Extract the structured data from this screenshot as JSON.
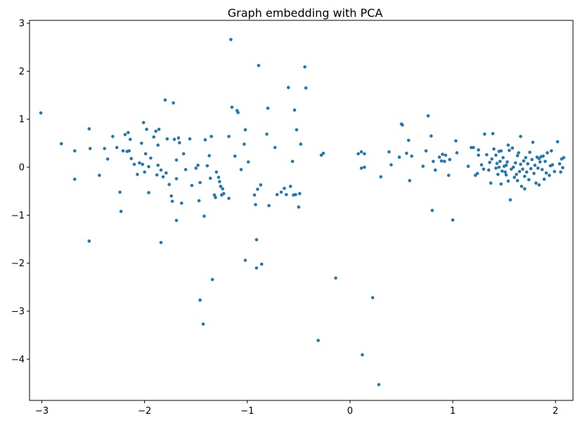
{
  "chart_data": {
    "type": "scatter",
    "title": "Graph embedding with PCA",
    "xlabel": "",
    "ylabel": "",
    "xlim": [
      -3.12,
      2.17
    ],
    "ylim": [
      -4.86,
      3.06
    ],
    "xticks": [
      -3,
      -2,
      -1,
      0,
      1,
      2
    ],
    "yticks": [
      -4,
      -3,
      -2,
      -1,
      0,
      1,
      2,
      3
    ],
    "xtick_labels": [
      "−3",
      "−2",
      "−1",
      "0",
      "1",
      "2"
    ],
    "ytick_labels": [
      "−4",
      "−3",
      "−2",
      "−1",
      "0",
      "1",
      "2",
      "3"
    ],
    "grid": false,
    "marker_color": "#1f77b4",
    "points": [
      [
        -3.01,
        1.13
      ],
      [
        -2.81,
        0.49
      ],
      [
        -2.68,
        0.34
      ],
      [
        -2.68,
        -0.25
      ],
      [
        -2.54,
        0.8
      ],
      [
        -2.53,
        0.39
      ],
      [
        -2.54,
        -1.54
      ],
      [
        -2.44,
        -0.17
      ],
      [
        -2.39,
        0.39
      ],
      [
        -2.36,
        0.17
      ],
      [
        -2.31,
        0.64
      ],
      [
        -2.27,
        0.41
      ],
      [
        -2.24,
        -0.52
      ],
      [
        -2.23,
        -0.92
      ],
      [
        -2.21,
        0.34
      ],
      [
        -2.19,
        0.68
      ],
      [
        -2.17,
        0.33
      ],
      [
        -2.16,
        0.72
      ],
      [
        -2.15,
        0.34
      ],
      [
        -2.14,
        0.58
      ],
      [
        -2.13,
        0.18
      ],
      [
        -2.1,
        0.06
      ],
      [
        -2.07,
        -0.15
      ],
      [
        -2.05,
        0.09
      ],
      [
        -2.03,
        0.5
      ],
      [
        -2.02,
        0.06
      ],
      [
        -2.01,
        0.93
      ],
      [
        -2.0,
        -0.1
      ],
      [
        -1.99,
        0.28
      ],
      [
        -1.98,
        0.79
      ],
      [
        -1.96,
        0.01
      ],
      [
        -1.96,
        -0.53
      ],
      [
        -1.94,
        0.19
      ],
      [
        -1.91,
        0.63
      ],
      [
        -1.89,
        0.75
      ],
      [
        -1.88,
        -0.16
      ],
      [
        -1.87,
        0.46
      ],
      [
        -1.87,
        0.04
      ],
      [
        -1.86,
        0.79
      ],
      [
        -1.84,
        -0.06
      ],
      [
        -1.84,
        -1.57
      ],
      [
        -1.82,
        -0.2
      ],
      [
        -1.8,
        1.4
      ],
      [
        -1.79,
        -0.12
      ],
      [
        -1.78,
        0.59
      ],
      [
        -1.76,
        -0.36
      ],
      [
        -1.74,
        -0.6
      ],
      [
        -1.73,
        -0.71
      ],
      [
        -1.72,
        1.34
      ],
      [
        -1.71,
        0.58
      ],
      [
        -1.69,
        -0.24
      ],
      [
        -1.69,
        -1.11
      ],
      [
        -1.69,
        0.15
      ],
      [
        -1.67,
        0.61
      ],
      [
        -1.66,
        0.51
      ],
      [
        -1.64,
        -0.75
      ],
      [
        -1.62,
        0.28
      ],
      [
        -1.6,
        -0.05
      ],
      [
        -1.56,
        0.59
      ],
      [
        -1.54,
        -0.38
      ],
      [
        -1.5,
        -0.02
      ],
      [
        -1.48,
        0.04
      ],
      [
        -1.47,
        -0.7
      ],
      [
        -1.46,
        -0.32
      ],
      [
        -1.46,
        -2.77
      ],
      [
        -1.43,
        -3.27
      ],
      [
        -1.42,
        -1.02
      ],
      [
        -1.41,
        0.57
      ],
      [
        -1.39,
        0.03
      ],
      [
        -1.37,
        0.24
      ],
      [
        -1.36,
        -0.23
      ],
      [
        -1.35,
        0.64
      ],
      [
        -1.34,
        -2.34
      ],
      [
        -1.32,
        -0.58
      ],
      [
        -1.31,
        -0.63
      ],
      [
        -1.3,
        -0.1
      ],
      [
        -1.28,
        -0.21
      ],
      [
        -1.27,
        -0.3
      ],
      [
        -1.26,
        -0.4
      ],
      [
        -1.25,
        -0.58
      ],
      [
        -1.24,
        -0.45
      ],
      [
        -1.23,
        -0.55
      ],
      [
        -1.18,
        -0.65
      ],
      [
        -1.18,
        0.64
      ],
      [
        -1.16,
        2.66
      ],
      [
        -1.15,
        1.25
      ],
      [
        -1.12,
        0.23
      ],
      [
        -1.1,
        1.18
      ],
      [
        -1.09,
        1.14
      ],
      [
        -1.06,
        -0.05
      ],
      [
        -1.03,
        0.48
      ],
      [
        -1.02,
        0.78
      ],
      [
        -1.02,
        -1.94
      ],
      [
        -0.99,
        0.11
      ],
      [
        -0.93,
        -0.58
      ],
      [
        -0.92,
        -0.78
      ],
      [
        -0.91,
        -1.51
      ],
      [
        -0.91,
        -2.1
      ],
      [
        -0.9,
        -0.46
      ],
      [
        -0.89,
        2.12
      ],
      [
        -0.87,
        -0.37
      ],
      [
        -0.86,
        -2.02
      ],
      [
        -0.81,
        0.69
      ],
      [
        -0.8,
        1.23
      ],
      [
        -0.79,
        -0.8
      ],
      [
        -0.73,
        0.41
      ],
      [
        -0.71,
        -0.57
      ],
      [
        -0.67,
        -0.52
      ],
      [
        -0.64,
        -0.44
      ],
      [
        -0.62,
        -0.57
      ],
      [
        -0.6,
        1.66
      ],
      [
        -0.58,
        -0.4
      ],
      [
        -0.56,
        0.12
      ],
      [
        -0.55,
        -0.58
      ],
      [
        -0.54,
        1.19
      ],
      [
        -0.53,
        -0.57
      ],
      [
        -0.52,
        0.78
      ],
      [
        -0.5,
        -0.83
      ],
      [
        -0.49,
        -0.55
      ],
      [
        -0.48,
        0.48
      ],
      [
        -0.44,
        2.09
      ],
      [
        -0.43,
        1.65
      ],
      [
        -0.31,
        -3.61
      ],
      [
        -0.28,
        0.25
      ],
      [
        -0.26,
        0.29
      ],
      [
        -0.14,
        -2.31
      ],
      [
        0.08,
        0.28
      ],
      [
        0.11,
        0.32
      ],
      [
        0.11,
        -0.02
      ],
      [
        0.12,
        -3.91
      ],
      [
        0.14,
        0.28
      ],
      [
        0.14,
        0.0
      ],
      [
        0.22,
        -2.72
      ],
      [
        0.28,
        -4.53
      ],
      [
        0.3,
        -0.2
      ],
      [
        0.38,
        0.32
      ],
      [
        0.4,
        0.05
      ],
      [
        0.48,
        0.21
      ],
      [
        0.5,
        0.9
      ],
      [
        0.51,
        0.88
      ],
      [
        0.55,
        0.29
      ],
      [
        0.57,
        0.56
      ],
      [
        0.58,
        -0.28
      ],
      [
        0.6,
        0.23
      ],
      [
        0.71,
        0.02
      ],
      [
        0.74,
        0.34
      ],
      [
        0.76,
        1.07
      ],
      [
        0.79,
        0.65
      ],
      [
        0.8,
        -0.9
      ],
      [
        0.81,
        0.12
      ],
      [
        0.83,
        -0.06
      ],
      [
        0.87,
        0.21
      ],
      [
        0.89,
        0.13
      ],
      [
        0.9,
        0.27
      ],
      [
        0.92,
        0.12
      ],
      [
        0.93,
        0.25
      ],
      [
        0.96,
        -0.17
      ],
      [
        0.97,
        0.16
      ],
      [
        1.0,
        -1.1
      ],
      [
        1.03,
        0.55
      ],
      [
        1.04,
        0.3
      ],
      [
        1.15,
        0.02
      ],
      [
        1.18,
        0.41
      ],
      [
        1.2,
        0.41
      ],
      [
        1.22,
        -0.17
      ],
      [
        1.24,
        -0.13
      ],
      [
        1.25,
        0.25
      ],
      [
        1.25,
        0.36
      ],
      [
        1.28,
        0.05
      ],
      [
        1.3,
        -0.04
      ],
      [
        1.31,
        0.69
      ],
      [
        1.33,
        0.26
      ],
      [
        1.35,
        -0.06
      ],
      [
        1.36,
        0.1
      ],
      [
        1.37,
        -0.33
      ],
      [
        1.38,
        0.17
      ],
      [
        1.39,
        0.7
      ],
      [
        1.4,
        0.38
      ],
      [
        1.42,
        -0.02
      ],
      [
        1.42,
        0.25
      ],
      [
        1.43,
        0.08
      ],
      [
        1.44,
        -0.15
      ],
      [
        1.45,
        0.33
      ],
      [
        1.45,
        0.0
      ],
      [
        1.46,
        0.12
      ],
      [
        1.47,
        -0.35
      ],
      [
        1.47,
        0.34
      ],
      [
        1.48,
        -0.08
      ],
      [
        1.49,
        0.2
      ],
      [
        1.5,
        0.02
      ],
      [
        1.51,
        -0.1
      ],
      [
        1.52,
        0.04
      ],
      [
        1.52,
        -0.16
      ],
      [
        1.53,
        0.11
      ],
      [
        1.54,
        0.46
      ],
      [
        1.54,
        -0.29
      ],
      [
        1.55,
        0.35
      ],
      [
        1.56,
        -0.68
      ],
      [
        1.57,
        -0.04
      ],
      [
        1.58,
        0.4
      ],
      [
        1.59,
        0.0
      ],
      [
        1.6,
        -0.21
      ],
      [
        1.61,
        0.09
      ],
      [
        1.62,
        -0.15
      ],
      [
        1.63,
        0.24
      ],
      [
        1.63,
        -0.28
      ],
      [
        1.64,
        0.3
      ],
      [
        1.65,
        -0.09
      ],
      [
        1.66,
        0.64
      ],
      [
        1.66,
        0.06
      ],
      [
        1.67,
        -0.4
      ],
      [
        1.68,
        -0.04
      ],
      [
        1.69,
        0.13
      ],
      [
        1.7,
        -0.19
      ],
      [
        1.7,
        -0.45
      ],
      [
        1.71,
        0.2
      ],
      [
        1.72,
        -0.1
      ],
      [
        1.73,
        0.07
      ],
      [
        1.74,
        -0.26
      ],
      [
        1.75,
        0.31
      ],
      [
        1.76,
        -0.03
      ],
      [
        1.77,
        0.16
      ],
      [
        1.78,
        0.52
      ],
      [
        1.79,
        -0.13
      ],
      [
        1.8,
        0.04
      ],
      [
        1.81,
        -0.33
      ],
      [
        1.82,
        0.21
      ],
      [
        1.83,
        -0.02
      ],
      [
        1.84,
        0.18
      ],
      [
        1.84,
        -0.37
      ],
      [
        1.85,
        0.11
      ],
      [
        1.86,
        0.22
      ],
      [
        1.87,
        -0.05
      ],
      [
        1.88,
        0.23
      ],
      [
        1.89,
        -0.25
      ],
      [
        1.9,
        0.12
      ],
      [
        1.91,
        -0.12
      ],
      [
        1.92,
        0.3
      ],
      [
        1.94,
        -0.17
      ],
      [
        1.95,
        0.03
      ],
      [
        1.96,
        0.34
      ],
      [
        1.97,
        0.05
      ],
      [
        1.99,
        -0.09
      ],
      [
        2.02,
        0.53
      ],
      [
        2.04,
        0.07
      ],
      [
        2.06,
        0.17
      ],
      [
        2.07,
        -0.01
      ],
      [
        2.05,
        -0.1
      ],
      [
        2.08,
        0.2
      ]
    ]
  }
}
